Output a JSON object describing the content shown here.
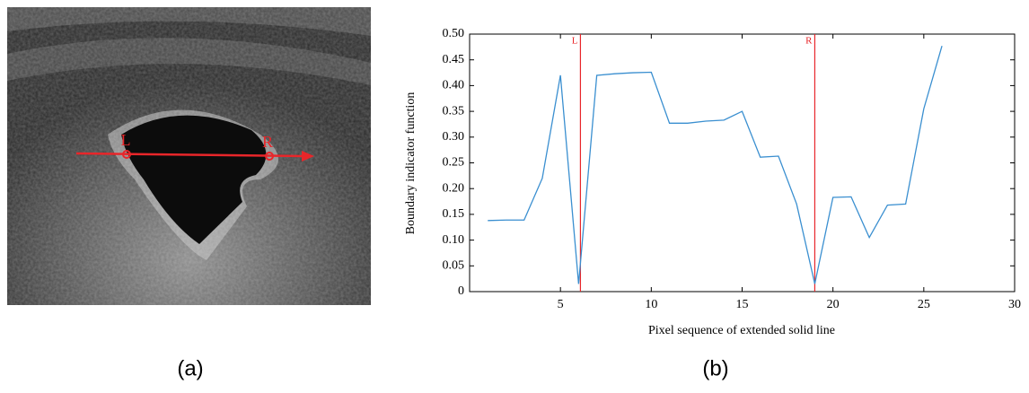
{
  "image": {
    "labels": [
      "L",
      "R"
    ]
  },
  "captions": [
    "(a)",
    "(b)"
  ],
  "chart_data": {
    "type": "line",
    "xlabel": "Pixel sequence of extended solid line",
    "ylabel": "Boundary indicator function",
    "x": [
      1,
      2,
      3,
      4,
      5,
      6,
      7,
      8,
      9,
      10,
      11,
      12,
      13,
      14,
      15,
      16,
      17,
      18,
      19,
      20,
      21,
      22,
      23,
      24,
      25,
      26
    ],
    "series": [
      {
        "color": "#3a8fd0",
        "values": [
          0.138,
          0.139,
          0.139,
          0.22,
          0.42,
          0.015,
          0.42,
          0.423,
          0.425,
          0.426,
          0.327,
          0.327,
          0.331,
          0.333,
          0.35,
          0.261,
          0.263,
          0.17,
          0.015,
          0.183,
          0.184,
          0.105,
          0.168,
          0.17,
          0.355,
          0.477
        ]
      }
    ],
    "annotations": [
      {
        "label": "L",
        "x": 6.1,
        "color": "#e8262a"
      },
      {
        "label": "R",
        "x": 19,
        "color": "#e8262a"
      }
    ],
    "xlim": [
      0,
      30
    ],
    "xticks": [
      5,
      10,
      15,
      20,
      25,
      30
    ],
    "ylim": [
      0,
      0.5
    ],
    "yticks": [
      0,
      0.05,
      {
        "value": 0.1,
        "label": "0.10"
      },
      0.15,
      {
        "value": 0.2,
        "label": "0.20"
      },
      0.25,
      {
        "value": 0.3,
        "label": "0.30"
      },
      0.35,
      {
        "value": 0.4,
        "label": "0.40"
      },
      0.45,
      {
        "value": 0.5,
        "label": "0.50"
      }
    ]
  }
}
